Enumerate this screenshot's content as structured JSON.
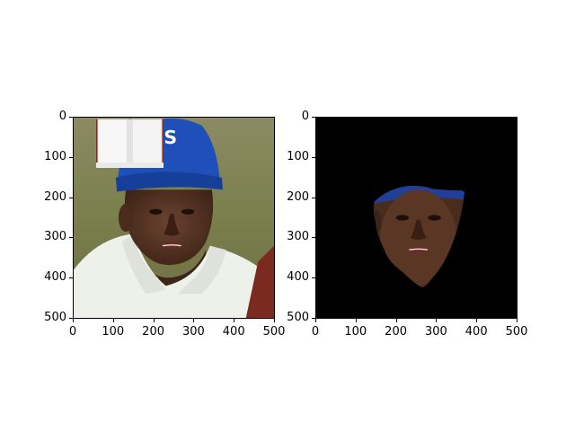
{
  "panels": [
    {
      "name": "original-photo",
      "xticks": [
        "0",
        "100",
        "200",
        "300",
        "400",
        "500"
      ],
      "yticks": [
        "0",
        "100",
        "200",
        "300",
        "400",
        "500"
      ],
      "overlay": "book-icon"
    },
    {
      "name": "masked-face",
      "xticks": [
        "0",
        "100",
        "200",
        "300",
        "400",
        "500"
      ],
      "yticks": [
        "0",
        "100",
        "200",
        "300",
        "400",
        "500"
      ],
      "background": "#000000"
    }
  ],
  "colors": {
    "cap": "#1f4fb8",
    "shirt": "#eef0ea",
    "skin": "#5a3624",
    "backdrop": "#7f8456",
    "mask_bg": "#000000"
  }
}
